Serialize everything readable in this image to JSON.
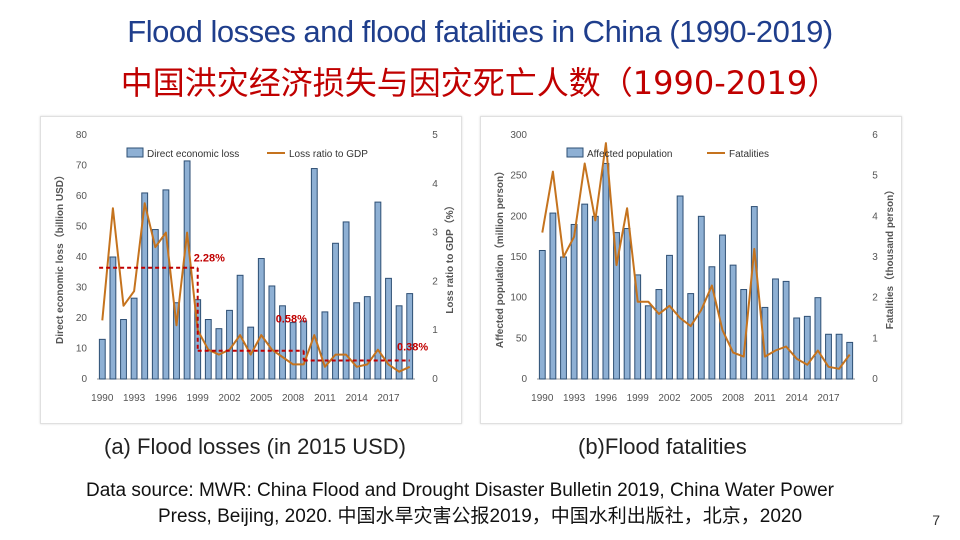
{
  "title_en": "Flood losses and flood fatalities in China (1990-2019)",
  "title_zh": "中国洪灾经济损失与因灾死亡人数（1990-2019）",
  "captions": {
    "a": "(a) Flood losses (in 2015 USD)",
    "b": "(b)Flood fatalities"
  },
  "source": {
    "line1": "Data source: MWR: China Flood and Drought Disaster Bulletin 2019, China Water Power",
    "line2": "Press, Beijing, 2020. 中国水旱灾害公报2019，中国水利出版社，北京，2020"
  },
  "page_number": "7",
  "colors": {
    "bar_fill": "#8eb0d4",
    "bar_edge": "#2e4f74",
    "line": "#c5731e",
    "annotation": "#c00000",
    "title_en": "#1f3e8c"
  },
  "chart_data": [
    {
      "type": "bar",
      "id": "a",
      "x": [
        1990,
        1991,
        1992,
        1993,
        1994,
        1995,
        1996,
        1997,
        1998,
        1999,
        2000,
        2001,
        2002,
        2003,
        2004,
        2005,
        2006,
        2007,
        2008,
        2009,
        2010,
        2011,
        2012,
        2013,
        2014,
        2015,
        2016,
        2017,
        2018,
        2019
      ],
      "xtick_labels": [
        "1990",
        "1993",
        "1996",
        "1999",
        "2002",
        "2005",
        "2008",
        "2011",
        "2014",
        "2017"
      ],
      "series": [
        {
          "name": "Direct economic loss",
          "axis": "left",
          "type": "bar",
          "values": [
            13,
            40,
            19.5,
            26.5,
            61,
            49,
            62,
            25,
            71.5,
            26,
            19.5,
            16.5,
            22.5,
            34,
            17,
            39.5,
            30.5,
            24,
            18.5,
            19,
            69,
            22,
            44.5,
            51.5,
            25,
            27,
            58,
            33,
            24,
            28
          ]
        },
        {
          "name": "Loss ratio to GDP",
          "axis": "right",
          "type": "line",
          "values": [
            1.2,
            3.5,
            1.5,
            1.8,
            3.6,
            2.7,
            3.0,
            1.1,
            3.0,
            1.0,
            0.6,
            0.5,
            0.6,
            0.9,
            0.5,
            0.9,
            0.6,
            0.45,
            0.3,
            0.3,
            0.9,
            0.25,
            0.5,
            0.5,
            0.25,
            0.3,
            0.6,
            0.3,
            0.15,
            0.25
          ]
        }
      ],
      "ylabel_left": "Direct economic loss（billion USD）",
      "ylabel_right": "Loss ratio to GDP（%）",
      "ylim_left": [
        0,
        80
      ],
      "yticks_left": [
        0,
        10,
        20,
        30,
        40,
        50,
        60,
        70,
        80
      ],
      "ylim_right": [
        0,
        5
      ],
      "yticks_right": [
        0,
        1,
        2,
        3,
        4,
        5
      ],
      "legend": "top",
      "annotations": [
        {
          "text": "2.28%",
          "value": 2.28,
          "from": 1990,
          "to": 1999
        },
        {
          "text": "0.58%",
          "value": 0.58,
          "from": 1999,
          "to": 2009
        },
        {
          "text": "0.38%",
          "value": 0.38,
          "from": 2009,
          "to": 2019
        }
      ]
    },
    {
      "type": "bar",
      "id": "b",
      "x": [
        1990,
        1991,
        1992,
        1993,
        1994,
        1995,
        1996,
        1997,
        1998,
        1999,
        2000,
        2001,
        2002,
        2003,
        2004,
        2005,
        2006,
        2007,
        2008,
        2009,
        2010,
        2011,
        2012,
        2013,
        2014,
        2015,
        2016,
        2017,
        2018,
        2019
      ],
      "xtick_labels": [
        "1990",
        "1993",
        "1996",
        "1999",
        "2002",
        "2005",
        "2008",
        "2011",
        "2014",
        "2017"
      ],
      "series": [
        {
          "name": "Affected population",
          "axis": "left",
          "type": "bar",
          "values": [
            158,
            204,
            150,
            190,
            215,
            200,
            265,
            180,
            185,
            128,
            90,
            110,
            152,
            225,
            105,
            200,
            138,
            177,
            140,
            110,
            212,
            88,
            123,
            120,
            75,
            77,
            100,
            55,
            55,
            45
          ]
        },
        {
          "name": "Fatalities",
          "axis": "right",
          "type": "line",
          "values": [
            3.6,
            5.1,
            3.0,
            3.5,
            5.3,
            3.9,
            5.8,
            2.8,
            4.2,
            1.9,
            1.9,
            1.6,
            1.8,
            1.5,
            1.3,
            1.7,
            2.3,
            1.2,
            0.65,
            0.55,
            3.2,
            0.55,
            0.7,
            0.8,
            0.5,
            0.35,
            0.7,
            0.3,
            0.25,
            0.6
          ]
        }
      ],
      "ylabel_left": "Affected population（million person）",
      "ylabel_right": "Fatalities（thousand person）",
      "ylim_left": [
        0,
        300
      ],
      "yticks_left": [
        0,
        50,
        100,
        150,
        200,
        250,
        300
      ],
      "ylim_right": [
        0,
        6
      ],
      "yticks_right": [
        0,
        1,
        2,
        3,
        4,
        5,
        6
      ],
      "legend": "top"
    }
  ]
}
